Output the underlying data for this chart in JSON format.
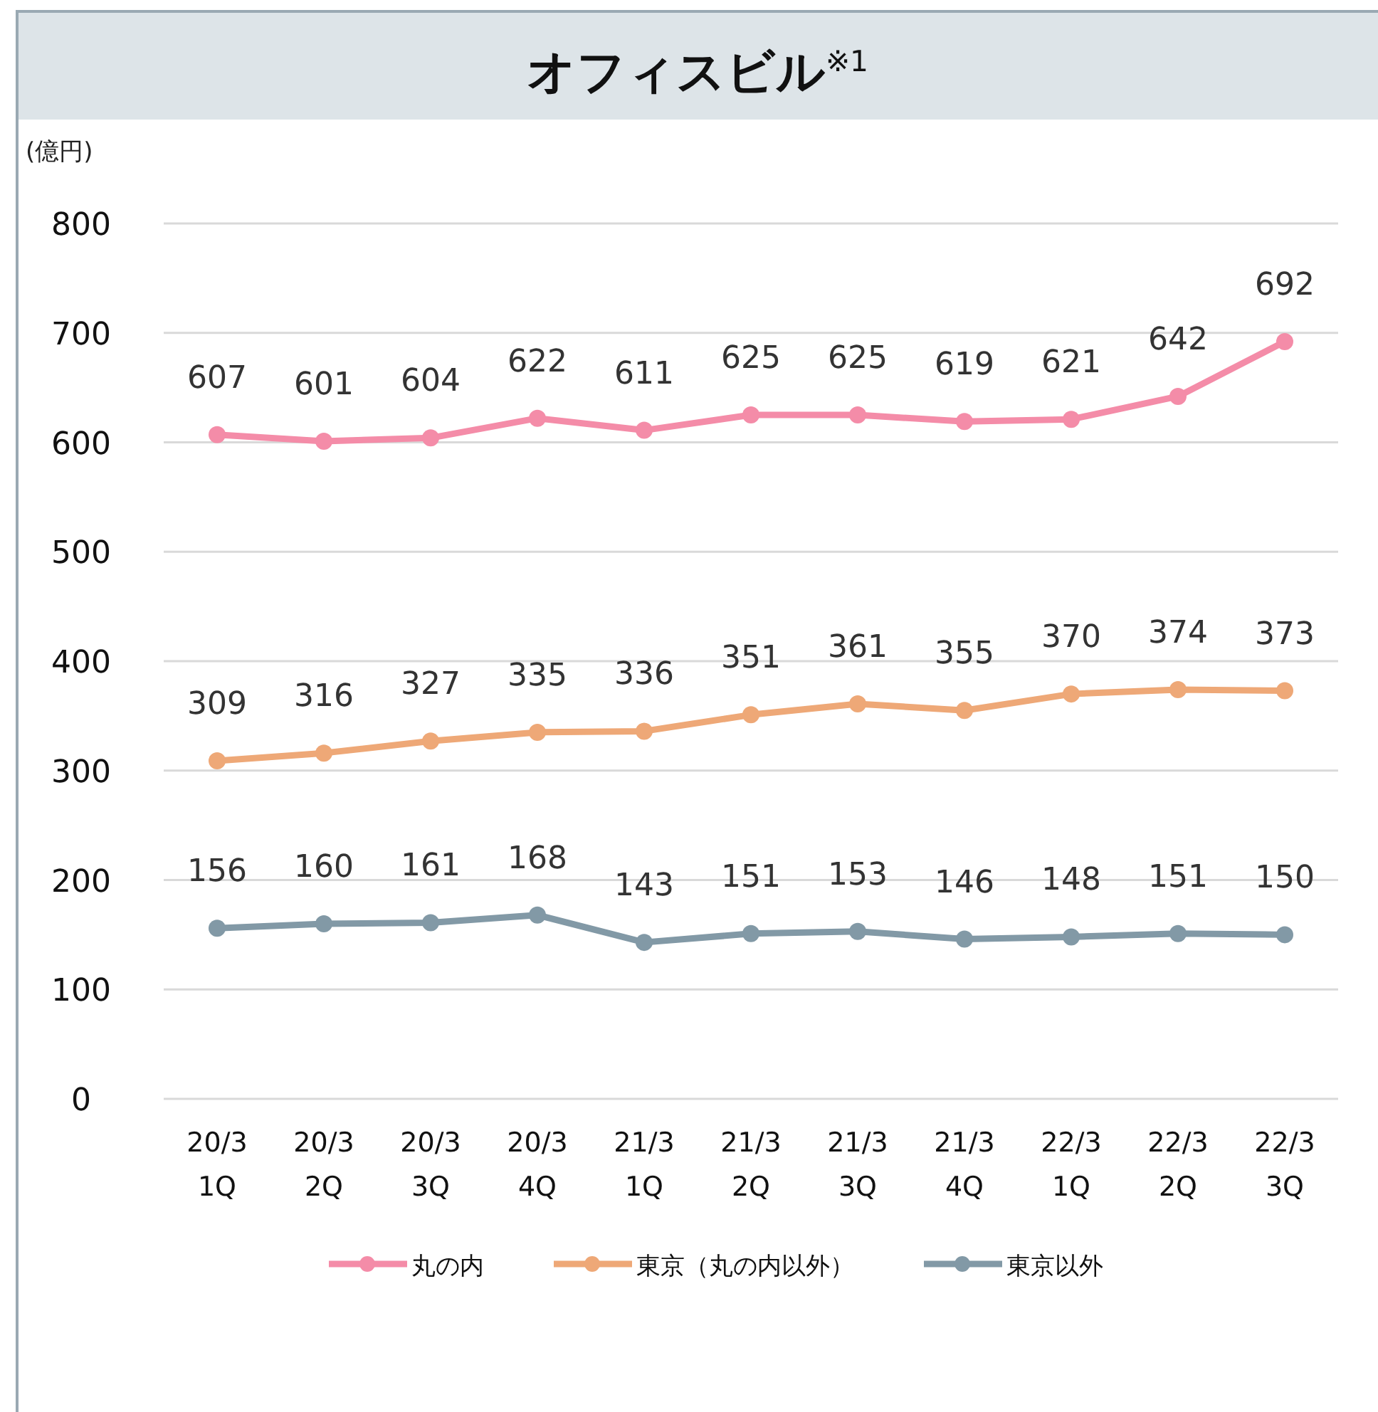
{
  "chart_data": {
    "type": "line",
    "title": "オフィスビル$^{※1}$",
    "ylabel": "(億円)",
    "categories": [
      "20/3\n1Q",
      "20/3\n2Q",
      "20/3\n3Q",
      "20/3\n4Q",
      "21/3\n1Q",
      "21/3\n2Q",
      "21/3\n3Q",
      "21/3\n4Q",
      "22/3\n1Q",
      "22/3\n2Q",
      "22/3\n3Q"
    ],
    "series": [
      {
        "name": "丸の内",
        "color": "#f48ca8",
        "values": [
          607,
          601,
          604,
          622,
          611,
          625,
          625,
          619,
          621,
          642,
          692
        ]
      },
      {
        "name": "東京（丸の内以外）",
        "color": "#eea877",
        "values": [
          309,
          316,
          327,
          335,
          336,
          351,
          361,
          355,
          370,
          374,
          373
        ]
      },
      {
        "name": "東京以外",
        "color": "#8299a6",
        "values": [
          156,
          160,
          161,
          168,
          143,
          151,
          153,
          146,
          148,
          151,
          150
        ]
      }
    ],
    "ylim": [
      0,
      800
    ],
    "yticks": [
      0,
      100,
      200,
      300,
      400,
      500,
      600,
      700,
      800
    ],
    "grid": "y",
    "legend": "bottom",
    "data_labels": true,
    "marker": "circle"
  }
}
